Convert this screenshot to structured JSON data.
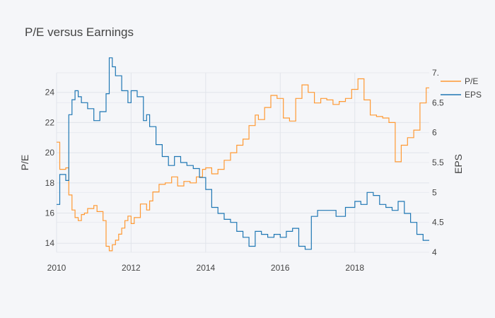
{
  "chart_data": {
    "type": "line",
    "title": "P/E versus Earnings",
    "xlabel": "",
    "ylabel": "P/E",
    "y2label": "EPS",
    "x_range": [
      "2010-01-01",
      "2019-12-31"
    ],
    "x_ticks": [
      "2010",
      "2012",
      "2014",
      "2016",
      "2018"
    ],
    "ylim": [
      13.4,
      25.3
    ],
    "y_ticks": [
      14,
      16,
      18,
      20,
      22,
      24
    ],
    "y2lim": [
      4.0,
      7.0
    ],
    "y2_ticks": [
      "4",
      "4.5",
      "5",
      "5.5",
      "6",
      "6.5",
      "7"
    ],
    "y2_top_tick": "7.",
    "grid": true,
    "legend": "top-right",
    "series": [
      {
        "name": "P/E",
        "color": "#ff9933",
        "axis": "y",
        "shape": "step",
        "x": [
          "2010-01-01",
          "2010-02-01",
          "2010-04-01",
          "2010-05-01",
          "2010-06-01",
          "2010-07-01",
          "2010-08-01",
          "2010-09-01",
          "2010-10-01",
          "2010-11-01",
          "2011-01-01",
          "2011-02-01",
          "2011-04-01",
          "2011-05-01",
          "2011-06-01",
          "2011-07-01",
          "2011-08-01",
          "2011-09-01",
          "2011-10-01",
          "2011-11-01",
          "2011-12-01",
          "2012-01-01",
          "2012-02-01",
          "2012-04-01",
          "2012-06-01",
          "2012-07-01",
          "2012-08-01",
          "2012-10-01",
          "2012-12-01",
          "2013-02-01",
          "2013-04-01",
          "2013-06-01",
          "2013-08-01",
          "2013-10-01",
          "2013-12-01",
          "2014-01-01",
          "2014-03-01",
          "2014-05-01",
          "2014-07-01",
          "2014-09-01",
          "2014-11-01",
          "2015-01-01",
          "2015-03-01",
          "2015-05-01",
          "2015-06-01",
          "2015-08-01",
          "2015-10-01",
          "2015-12-01",
          "2016-02-01",
          "2016-04-01",
          "2016-06-01",
          "2016-08-01",
          "2016-10-01",
          "2016-12-01",
          "2017-02-01",
          "2017-04-01",
          "2017-06-01",
          "2017-08-01",
          "2017-10-01",
          "2017-12-01",
          "2018-02-01",
          "2018-04-01",
          "2018-06-01",
          "2018-08-01",
          "2018-10-01",
          "2018-12-01",
          "2019-02-01",
          "2019-04-01",
          "2019-06-01",
          "2019-08-01",
          "2019-10-01",
          "2019-12-01"
        ],
        "y": [
          20.7,
          18.9,
          19.0,
          17.2,
          16.2,
          15.7,
          15.5,
          15.9,
          16.0,
          16.3,
          16.5,
          16.1,
          15.5,
          13.8,
          13.5,
          13.9,
          14.2,
          14.6,
          15.0,
          15.5,
          15.8,
          15.3,
          15.7,
          16.6,
          16.2,
          16.8,
          17.4,
          17.9,
          18.0,
          18.4,
          17.8,
          18.1,
          18.0,
          18.4,
          18.9,
          19.0,
          18.6,
          18.9,
          19.5,
          20.0,
          20.5,
          20.9,
          21.8,
          22.5,
          22.2,
          23.0,
          23.8,
          23.6,
          22.3,
          22.1,
          23.6,
          24.5,
          24.0,
          23.3,
          23.6,
          23.5,
          23.2,
          23.4,
          23.6,
          24.2,
          24.9,
          23.5,
          22.5,
          22.4,
          22.3,
          22.0,
          19.4,
          20.5,
          21.0,
          21.5,
          23.3,
          24.3
        ]
      },
      {
        "name": "EPS",
        "color": "#1f77b4",
        "axis": "y2",
        "shape": "step",
        "x": [
          "2010-01-01",
          "2010-02-01",
          "2010-04-01",
          "2010-05-01",
          "2010-06-01",
          "2010-07-01",
          "2010-08-01",
          "2010-09-01",
          "2010-11-01",
          "2011-01-01",
          "2011-03-01",
          "2011-05-01",
          "2011-06-01",
          "2011-07-01",
          "2011-08-01",
          "2011-10-01",
          "2011-12-01",
          "2012-01-01",
          "2012-03-01",
          "2012-05-01",
          "2012-06-01",
          "2012-07-01",
          "2012-09-01",
          "2012-11-01",
          "2013-01-01",
          "2013-03-01",
          "2013-05-01",
          "2013-07-01",
          "2013-09-01",
          "2013-11-01",
          "2014-01-01",
          "2014-03-01",
          "2014-05-01",
          "2014-07-01",
          "2014-09-01",
          "2014-11-01",
          "2015-01-01",
          "2015-03-01",
          "2015-05-01",
          "2015-07-01",
          "2015-09-01",
          "2015-11-01",
          "2016-01-01",
          "2016-03-01",
          "2016-05-01",
          "2016-07-01",
          "2016-09-01",
          "2016-11-01",
          "2017-01-01",
          "2017-04-01",
          "2017-07-01",
          "2017-10-01",
          "2018-01-01",
          "2018-03-01",
          "2018-05-01",
          "2018-07-01",
          "2018-09-01",
          "2018-11-01",
          "2019-01-01",
          "2019-03-01",
          "2019-05-01",
          "2019-07-01",
          "2019-09-01",
          "2019-11-01"
        ],
        "y": [
          4.8,
          5.3,
          5.2,
          6.3,
          6.55,
          6.7,
          6.6,
          6.5,
          6.4,
          6.2,
          6.35,
          6.65,
          7.25,
          7.1,
          6.95,
          6.7,
          6.5,
          6.7,
          6.6,
          6.2,
          6.3,
          6.1,
          5.8,
          5.6,
          5.45,
          5.6,
          5.5,
          5.45,
          5.4,
          5.25,
          5.05,
          4.75,
          4.65,
          4.55,
          4.5,
          4.35,
          4.25,
          4.1,
          4.35,
          4.3,
          4.25,
          4.3,
          4.25,
          4.35,
          4.4,
          4.1,
          4.05,
          4.6,
          4.7,
          4.7,
          4.6,
          4.75,
          4.85,
          4.8,
          5.0,
          4.95,
          4.8,
          4.75,
          4.7,
          4.85,
          4.65,
          4.5,
          4.3,
          4.2
        ]
      }
    ]
  }
}
